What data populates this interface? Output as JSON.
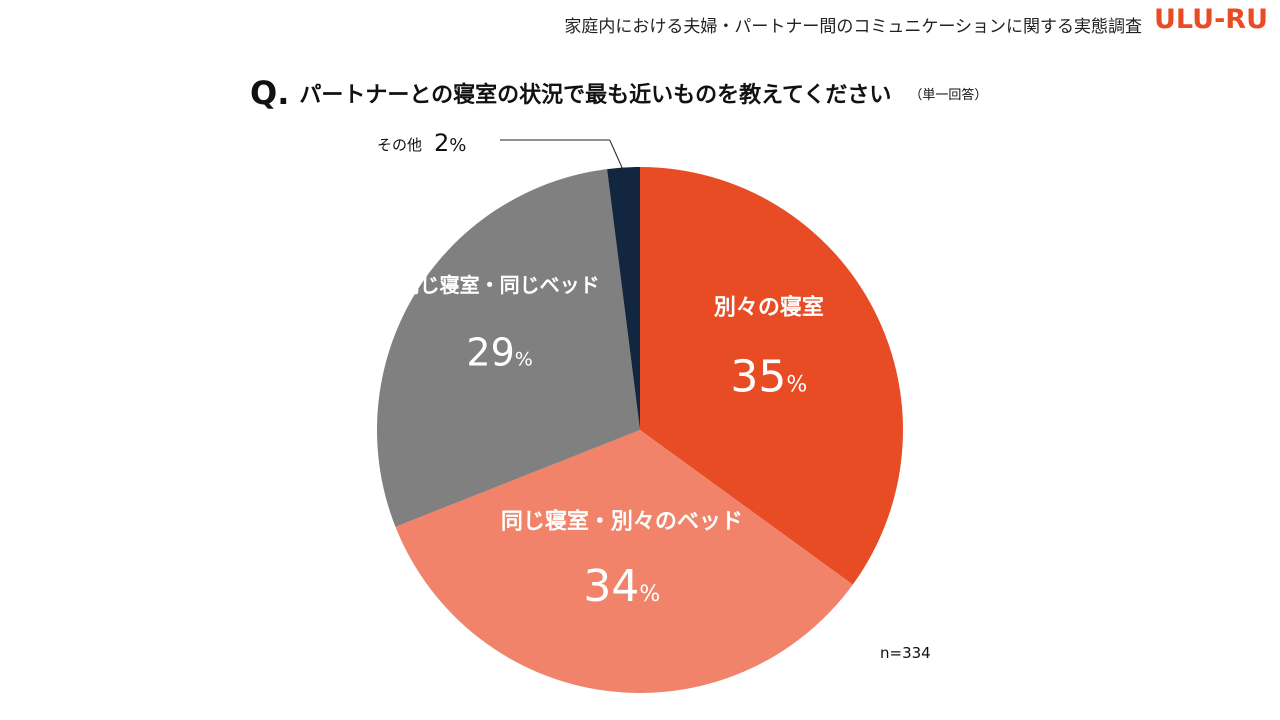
{
  "header": {
    "survey_title": "家庭内における夫婦・パートナー間のコミュニケーションに関する実態調査",
    "logo_text": "ULU-RU"
  },
  "question": {
    "mark": "Q.",
    "text": "パートナーとの寝室の状況で最も近いものを教えてください",
    "note": "（単一回答）"
  },
  "sample_size": "n=334",
  "colors": {
    "accent": "#e84c24",
    "slice_separate_room": "#e84c24",
    "slice_same_room_separate_bed": "#f08369",
    "slice_same_bed": "#808080",
    "slice_other": "#13263f"
  },
  "chart_data": {
    "type": "pie",
    "start": "12 o'clock, clockwise",
    "slices": [
      {
        "label": "別々の寝室",
        "value": 35,
        "display": "35",
        "unit": "%",
        "color": "#e84c24"
      },
      {
        "label": "同じ寝室・別々のベッド",
        "value": 34,
        "display": "34",
        "unit": "%",
        "color": "#f08369"
      },
      {
        "label": "同じ寝室・同じベッド",
        "value": 29,
        "display": "29",
        "unit": "%",
        "color": "#808080"
      },
      {
        "label": "その他",
        "value": 2,
        "display": "2",
        "unit": "%",
        "color": "#13263f"
      }
    ]
  }
}
